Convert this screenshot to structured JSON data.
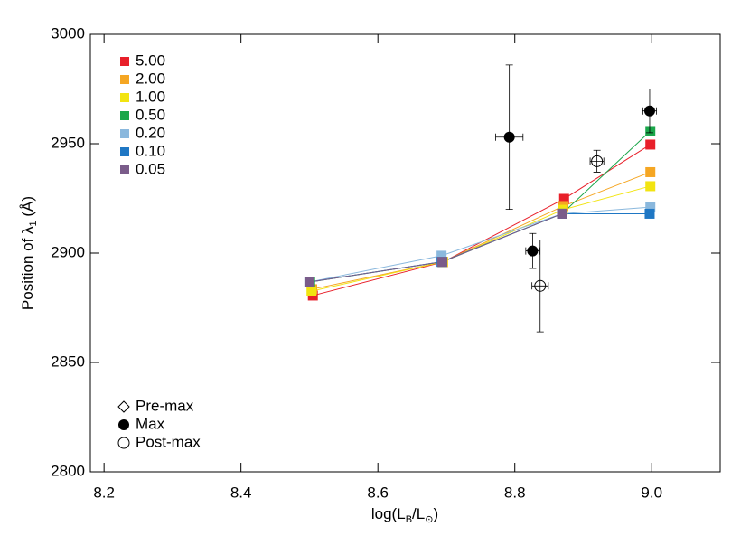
{
  "chart_data": {
    "type": "line",
    "xlabel": [
      "log(L",
      "B",
      "/L",
      "⊙",
      ")"
    ],
    "ylabel": [
      "Position of λ",
      "1",
      " (Å)"
    ],
    "xlim": [
      8.18,
      9.1
    ],
    "ylim": [
      2800,
      3000
    ],
    "xticks": [
      8.2,
      8.4,
      8.6,
      8.8,
      {
        "value": 9,
        "label": "9.0"
      }
    ],
    "yticks": [
      2800,
      2850,
      2900,
      2950,
      3000
    ],
    "legend": "upper left",
    "symbol_legend": "lower left",
    "series": [
      {
        "name": "5.00",
        "color": "#e8202a",
        "marker": "square",
        "x": [
          8.505,
          8.695,
          8.872,
          8.998
        ],
        "values": [
          2880.6,
          2895.9,
          2924.8,
          2949.6
        ]
      },
      {
        "name": "2.00",
        "color": "#f5a623",
        "marker": "square",
        "x": [
          8.504,
          8.695,
          8.871,
          8.998
        ],
        "values": [
          2883.5,
          2896,
          2921.5,
          2937
        ]
      },
      {
        "name": "1.00",
        "color": "#f2e411",
        "marker": "square",
        "x": [
          8.503,
          8.695,
          8.87,
          8.998
        ],
        "values": [
          2882.6,
          2896,
          2919.8,
          2930.6
        ]
      },
      {
        "name": "0.50",
        "color": "#1aa64a",
        "marker": "square",
        "x": [
          8.501,
          8.694,
          8.869,
          8.998
        ],
        "values": [
          2886.8,
          2896,
          2918,
          2955.8
        ]
      },
      {
        "name": "0.20",
        "color": "#8ab8dd",
        "marker": "square",
        "x": [
          8.5,
          8.693,
          8.869,
          8.998
        ],
        "values": [
          2886.8,
          2898.8,
          2918,
          2921
        ]
      },
      {
        "name": "0.10",
        "color": "#1f77c4",
        "marker": "square",
        "x": [
          8.5,
          8.693,
          8.869,
          8.997
        ],
        "values": [
          2886.8,
          2896,
          2918,
          2918
        ]
      },
      {
        "name": "0.05",
        "color": "#7a5c8a",
        "marker": "square",
        "x": [
          8.5,
          8.694,
          8.869,
          null
        ],
        "values": [
          2886.8,
          2896,
          2918,
          null
        ]
      },
      {
        "name": "Pre-max",
        "color": "#000000",
        "marker": "diamond-open",
        "x": [],
        "values": [],
        "xerr": [],
        "yerr": []
      },
      {
        "name": "Max",
        "color": "#000000",
        "marker": "circle-filled",
        "x": [
          8.792,
          8.826,
          8.997
        ],
        "values": [
          2953,
          2901,
          2965
        ],
        "xerr": [
          0.02,
          0.01,
          0.01
        ],
        "yerr": [
          33,
          8,
          10
        ]
      },
      {
        "name": "Post-max",
        "color": "#000000",
        "marker": "circle-open",
        "x": [
          8.92,
          8.837
        ],
        "values": [
          2942,
          2885
        ],
        "xerr": [
          0.01,
          0.012
        ],
        "yerr": [
          5,
          21
        ]
      }
    ]
  }
}
